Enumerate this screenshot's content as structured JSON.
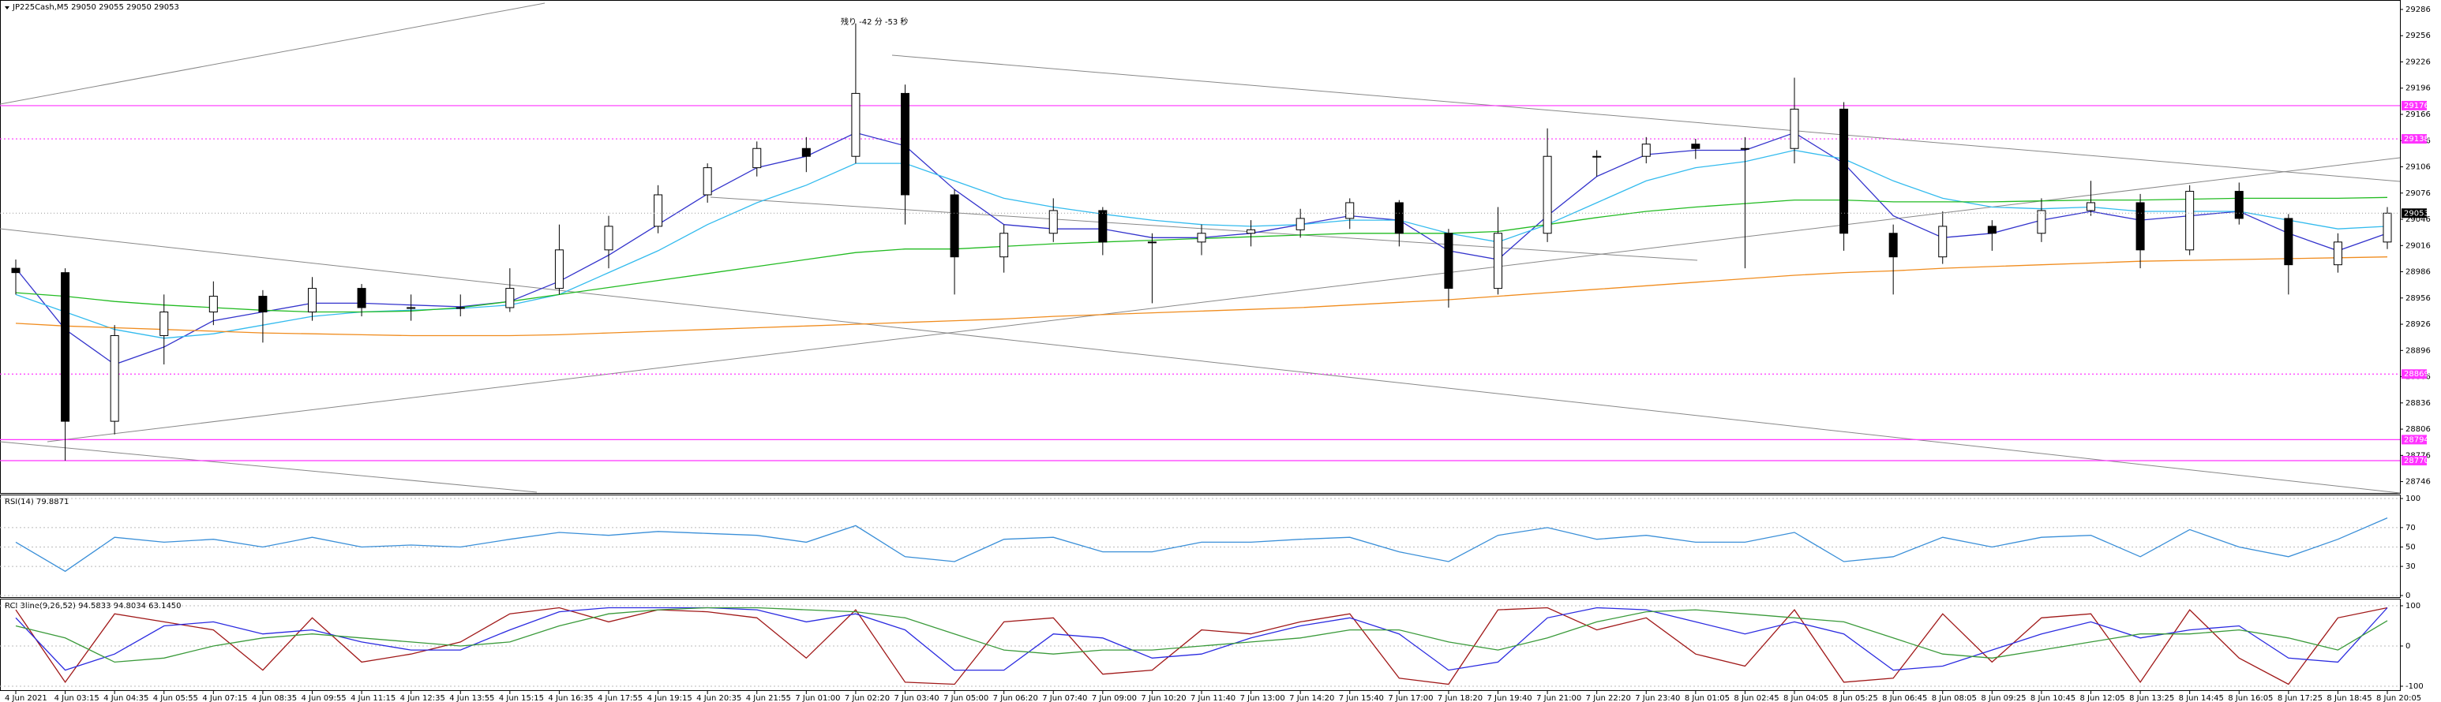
{
  "chart_data": [
    {
      "type": "candlestick",
      "title": "JP225Cash,M5  29050 29055 29050 29053",
      "annotation": "残り -42 分 -53 秒",
      "categories": [
        "4 Jun 2021",
        "4 Jun 03:15",
        "4 Jun 04:35",
        "4 Jun 05:55",
        "4 Jun 07:15",
        "4 Jun 08:35",
        "4 Jun 09:55",
        "4 Jun 11:15",
        "4 Jun 12:35",
        "4 Jun 13:55",
        "4 Jun 15:15",
        "4 Jun 16:35",
        "4 Jun 17:55",
        "4 Jun 19:15",
        "4 Jun 20:35",
        "4 Jun 21:55",
        "7 Jun 01:00",
        "7 Jun 02:20",
        "7 Jun 03:40",
        "7 Jun 05:00",
        "7 Jun 06:20",
        "7 Jun 07:40",
        "7 Jun 09:00",
        "7 Jun 10:20",
        "7 Jun 11:40",
        "7 Jun 13:00",
        "7 Jun 14:20",
        "7 Jun 15:40",
        "7 Jun 17:00",
        "7 Jun 18:20",
        "7 Jun 19:40",
        "7 Jun 21:00",
        "7 Jun 22:20",
        "7 Jun 23:40",
        "8 Jun 01:05",
        "8 Jun 02:45",
        "8 Jun 04:05",
        "8 Jun 05:25",
        "8 Jun 06:45",
        "8 Jun 08:05",
        "8 Jun 09:25",
        "8 Jun 10:45",
        "8 Jun 12:05",
        "8 Jun 13:25",
        "8 Jun 14:45",
        "8 Jun 16:05",
        "8 Jun 17:25",
        "8 Jun 18:45",
        "8 Jun 20:05"
      ],
      "ohlc": [
        [
          28990,
          29000,
          28960,
          28985
        ],
        [
          28985,
          28990,
          28770,
          28815
        ],
        [
          28815,
          28925,
          28800,
          28913
        ],
        [
          28913,
          28960,
          28880,
          28940
        ],
        [
          28940,
          28975,
          28925,
          28958
        ],
        [
          28958,
          28965,
          28905,
          28940
        ],
        [
          28940,
          28980,
          28930,
          28967
        ],
        [
          28967,
          28972,
          28935,
          28945
        ],
        [
          28945,
          28960,
          28930,
          28945
        ],
        [
          28945,
          28960,
          28935,
          28945
        ],
        [
          28945,
          28990,
          28940,
          28967
        ],
        [
          28967,
          29040,
          28960,
          29011
        ],
        [
          29011,
          29050,
          28990,
          29038
        ],
        [
          29038,
          29085,
          29030,
          29074
        ],
        [
          29074,
          29110,
          29065,
          29105
        ],
        [
          29105,
          29135,
          29095,
          29127
        ],
        [
          29127,
          29140,
          29100,
          29118
        ],
        [
          29118,
          29270,
          29110,
          29190
        ],
        [
          29190,
          29200,
          29040,
          29074
        ],
        [
          29074,
          29080,
          28960,
          29003
        ],
        [
          29003,
          29040,
          28985,
          29030
        ],
        [
          29030,
          29070,
          29020,
          29056
        ],
        [
          29056,
          29060,
          29005,
          29020
        ],
        [
          29020,
          29030,
          28950,
          29020
        ],
        [
          29020,
          29040,
          29005,
          29030
        ],
        [
          29030,
          29045,
          29015,
          29034
        ],
        [
          29034,
          29058,
          29025,
          29047
        ],
        [
          29047,
          29070,
          29035,
          29065
        ],
        [
          29065,
          29068,
          29015,
          29030
        ],
        [
          29030,
          29035,
          28945,
          28967
        ],
        [
          28967,
          29060,
          28960,
          29030
        ],
        [
          29030,
          29150,
          29020,
          29118
        ],
        [
          29118,
          29125,
          29095,
          29118
        ],
        [
          29118,
          29140,
          29110,
          29132
        ],
        [
          29132,
          29138,
          29115,
          29127
        ],
        [
          29127,
          29140,
          28990,
          29127
        ],
        [
          29127,
          29208,
          29110,
          29172
        ],
        [
          29172,
          29180,
          29010,
          29030
        ],
        [
          29030,
          29040,
          28960,
          29003
        ],
        [
          29003,
          29055,
          28995,
          29038
        ],
        [
          29038,
          29045,
          29010,
          29030
        ],
        [
          29030,
          29070,
          29020,
          29056
        ],
        [
          29056,
          29090,
          29050,
          29065
        ],
        [
          29065,
          29075,
          28990,
          29011
        ],
        [
          29011,
          29085,
          29005,
          29078
        ],
        [
          29078,
          29088,
          29040,
          29047
        ],
        [
          29047,
          29052,
          28960,
          28994
        ],
        [
          28994,
          29030,
          28985,
          29020
        ],
        [
          29020,
          29060,
          29012,
          29053
        ]
      ],
      "series": [
        {
          "color": "#3333cc",
          "values": [
            28990,
            28920,
            28880,
            28900,
            28930,
            28940,
            28950,
            28950,
            28948,
            28946,
            28952,
            28975,
            29005,
            29040,
            29075,
            29105,
            29118,
            29145,
            29130,
            29080,
            29040,
            29035,
            29035,
            29025,
            29025,
            29030,
            29040,
            29050,
            29045,
            29010,
            29000,
            29050,
            29095,
            29120,
            29125,
            29125,
            29145,
            29110,
            29050,
            29025,
            29030,
            29045,
            29055,
            29045,
            29050,
            29055,
            29030,
            29010,
            29030
          ]
        },
        {
          "color": "#33bbee",
          "values": [
            28960,
            28940,
            28920,
            28910,
            28915,
            28925,
            28935,
            28940,
            28942,
            28944,
            28948,
            28960,
            28985,
            29010,
            29040,
            29065,
            29085,
            29110,
            29110,
            29090,
            29070,
            29060,
            29052,
            29045,
            29040,
            29038,
            29040,
            29045,
            29045,
            29030,
            29020,
            29040,
            29065,
            29090,
            29105,
            29112,
            29125,
            29115,
            29090,
            29070,
            29060,
            29058,
            29060,
            29055,
            29055,
            29055,
            29045,
            29035,
            29038
          ]
        },
        {
          "color": "#22bb22",
          "values": [
            28962,
            28958,
            28952,
            28948,
            28945,
            28942,
            28940,
            28940,
            28941,
            28945,
            28952,
            28960,
            28968,
            28976,
            28984,
            28992,
            29000,
            29008,
            29012,
            29012,
            29015,
            29018,
            29020,
            29022,
            29024,
            29026,
            29028,
            29030,
            29030,
            29030,
            29032,
            29040,
            29048,
            29055,
            29060,
            29064,
            29068,
            29068,
            29066,
            29066,
            29066,
            29067,
            29068,
            29068,
            29069,
            29070,
            29070,
            29070,
            29071
          ]
        },
        {
          "color": "#f08c1e",
          "values": [
            28927,
            28924,
            28922,
            28920,
            28918,
            28916,
            28915,
            28914,
            28913,
            28913,
            28913,
            28914,
            28916,
            28918,
            28920,
            28922,
            28924,
            28926,
            28928,
            28930,
            28932,
            28935,
            28937,
            28939,
            28941,
            28943,
            28945,
            28948,
            28951,
            28954,
            28958,
            28962,
            28966,
            28970,
            28974,
            28978,
            28982,
            28985,
            28987,
            28990,
            28992,
            28994,
            28996,
            28998,
            28999,
            29000,
            29001,
            29002,
            29003
          ]
        }
      ],
      "ylim": [
        28733,
        29295
      ],
      "yticks": [
        29286,
        29256,
        29226,
        29196,
        29166,
        29136,
        29106,
        29076,
        29046,
        29016,
        28986,
        28956,
        28926,
        28896,
        28866,
        28836,
        28806,
        28776,
        28746
      ],
      "levels": [
        {
          "value": 29176,
          "style": "solid"
        },
        {
          "value": 29138,
          "style": "dotted"
        },
        {
          "value": 28869,
          "style": "dotted"
        },
        {
          "value": 28794,
          "style": "solid"
        },
        {
          "value": 28770,
          "style": "solid"
        }
      ],
      "level_color": "#ff33ff",
      "current_price": 29053
    },
    {
      "type": "line",
      "title": "RSI(14) 79.8871",
      "color": "#3a8fd8",
      "values": [
        55,
        25,
        60,
        55,
        58,
        50,
        60,
        50,
        52,
        50,
        58,
        65,
        62,
        66,
        64,
        62,
        55,
        72,
        40,
        35,
        58,
        60,
        45,
        45,
        55,
        55,
        58,
        60,
        45,
        35,
        62,
        70,
        58,
        62,
        55,
        55,
        65,
        35,
        40,
        60,
        50,
        60,
        62,
        40,
        68,
        50,
        40,
        58,
        80
      ],
      "ylim": [
        0,
        100
      ],
      "yticks": [
        100,
        70,
        50,
        30,
        0
      ]
    },
    {
      "type": "line",
      "title": "RCI 3line(9,26,52) 94.5833 94.8034 63.1450",
      "series": [
        {
          "color": "#a01818",
          "values": [
            90,
            -90,
            80,
            60,
            40,
            -60,
            70,
            -40,
            -20,
            10,
            80,
            95,
            60,
            90,
            85,
            70,
            -30,
            90,
            -90,
            -95,
            60,
            70,
            -70,
            -60,
            40,
            30,
            60,
            80,
            -80,
            -95,
            90,
            95,
            40,
            70,
            -20,
            -50,
            90,
            -90,
            -80,
            80,
            -40,
            70,
            80,
            -90,
            90,
            -30,
            -95,
            70,
            95
          ]
        },
        {
          "color": "#2a2ae0",
          "values": [
            70,
            -60,
            -20,
            50,
            60,
            30,
            40,
            10,
            -10,
            -10,
            40,
            85,
            95,
            95,
            95,
            90,
            60,
            80,
            40,
            -60,
            -60,
            30,
            20,
            -30,
            -20,
            20,
            50,
            70,
            30,
            -60,
            -40,
            70,
            95,
            90,
            60,
            30,
            60,
            30,
            -60,
            -50,
            -10,
            30,
            60,
            20,
            40,
            50,
            -30,
            -40,
            95
          ]
        },
        {
          "color": "#3a9a3a",
          "values": [
            50,
            20,
            -40,
            -30,
            0,
            20,
            30,
            20,
            10,
            0,
            10,
            50,
            80,
            90,
            95,
            95,
            90,
            85,
            70,
            30,
            -10,
            -20,
            -10,
            -10,
            0,
            10,
            20,
            40,
            40,
            10,
            -10,
            20,
            60,
            85,
            90,
            80,
            70,
            60,
            20,
            -20,
            -30,
            -10,
            10,
            30,
            30,
            40,
            20,
            -10,
            63
          ]
        }
      ],
      "ylim": [
        -100,
        100
      ],
      "yticks": [
        100,
        0,
        -100
      ]
    }
  ]
}
